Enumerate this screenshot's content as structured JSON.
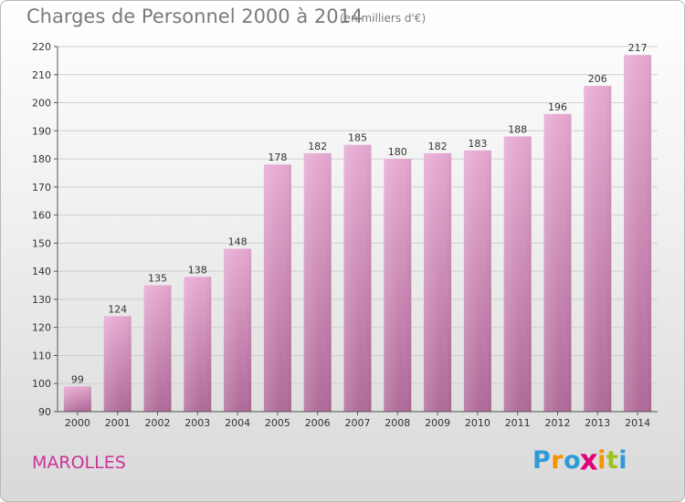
{
  "chart_data": {
    "type": "bar",
    "title": "Charges de Personnel 2000 à 2014",
    "subtitle": "(en milliers d'€)",
    "categories": [
      "2000",
      "2001",
      "2002",
      "2003",
      "2004",
      "2005",
      "2006",
      "2007",
      "2008",
      "2009",
      "2010",
      "2011",
      "2012",
      "2013",
      "2014"
    ],
    "values": [
      99,
      124,
      135,
      138,
      148,
      178,
      182,
      185,
      180,
      182,
      183,
      188,
      196,
      206,
      217
    ],
    "ylim": [
      90,
      220
    ],
    "yticks": [
      90,
      100,
      110,
      120,
      130,
      140,
      150,
      160,
      170,
      180,
      190,
      200,
      210,
      220
    ],
    "grid": true,
    "xlabel": "",
    "ylabel": ""
  },
  "place": "MAROLLES",
  "logo": {
    "letters": [
      "P",
      "r",
      "o",
      "x",
      "i",
      "t",
      "i"
    ],
    "colors": [
      "#2e9ad6",
      "#f29400",
      "#2e9ad6",
      "#e2007a",
      "#f29400",
      "#9bc31f",
      "#2e9ad6"
    ]
  },
  "colors": {
    "bar_top": "#e6a9d2",
    "bar_bottom": "#b06a98",
    "place": "#cc3399"
  }
}
